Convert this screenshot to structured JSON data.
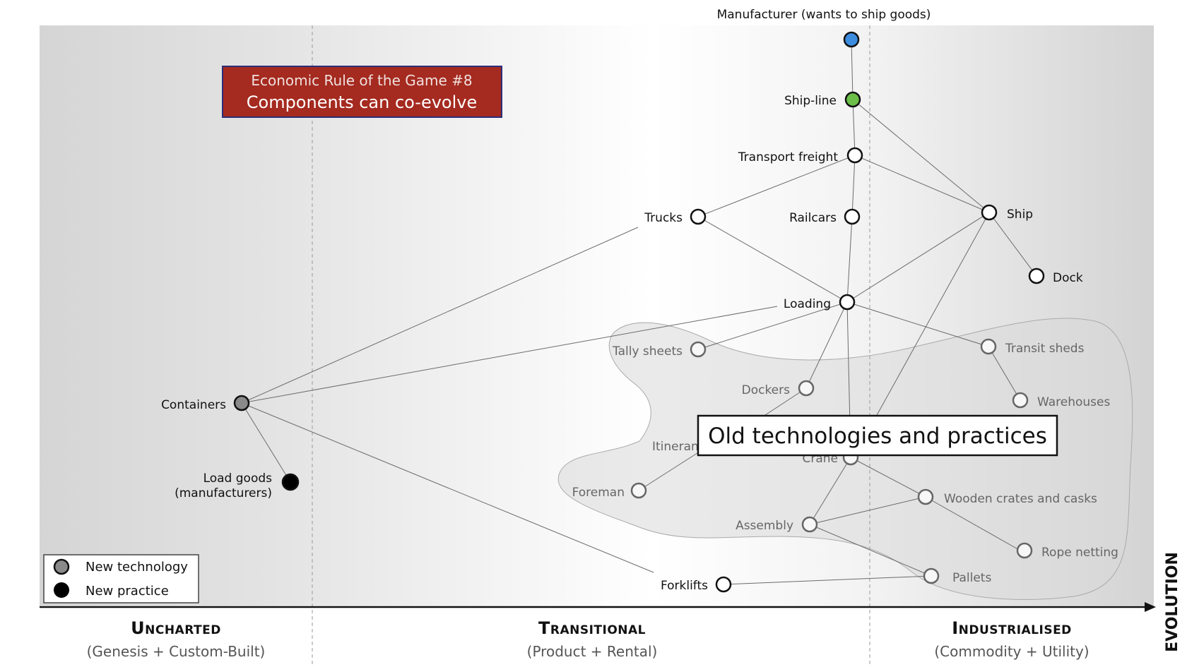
{
  "rule_box": {
    "line1": "Economic Rule of the Game #8",
    "line2": "Components can co-evolve",
    "fill": "#a52a1f",
    "border": "#2b2e7a"
  },
  "callout": "Old technologies and practices",
  "colors": {
    "manufacturer": "#3c8de0",
    "shipline": "#6cc04a",
    "new_technology": "#8a8a8a",
    "new_practice": "#000000"
  },
  "nodes": {
    "manufacturer": "Manufacturer (wants to ship goods)",
    "ship_line": "Ship-line",
    "transport_freight": "Transport freight",
    "trucks": "Trucks",
    "railcars": "Railcars",
    "ship": "Ship",
    "dock": "Dock",
    "loading": "Loading",
    "tally_sheets": "Tally sheets",
    "transit_sheds": "Transit sheds",
    "dockers": "Dockers",
    "warehouses": "Warehouses",
    "itinerant": "Itinerant",
    "crane": "Crane",
    "foreman": "Foreman",
    "wooden_crates": "Wooden crates and casks",
    "assembly": "Assembly",
    "rope_netting": "Rope netting",
    "pallets": "Pallets",
    "forklifts": "Forklifts",
    "containers": "Containers",
    "load_goods_1": "Load goods",
    "load_goods_2": "(manufacturers)"
  },
  "legend": {
    "new_technology": "New technology",
    "new_practice": "New practice"
  },
  "axis": {
    "evolution": "EVOLUTION",
    "zones": [
      {
        "title": "Uncharted",
        "subtitle": "(Genesis + Custom-Built)"
      },
      {
        "title": "Transitional",
        "subtitle": "(Product + Rental)"
      },
      {
        "title": "Industrialised",
        "subtitle": "(Commodity + Utility)"
      }
    ]
  }
}
